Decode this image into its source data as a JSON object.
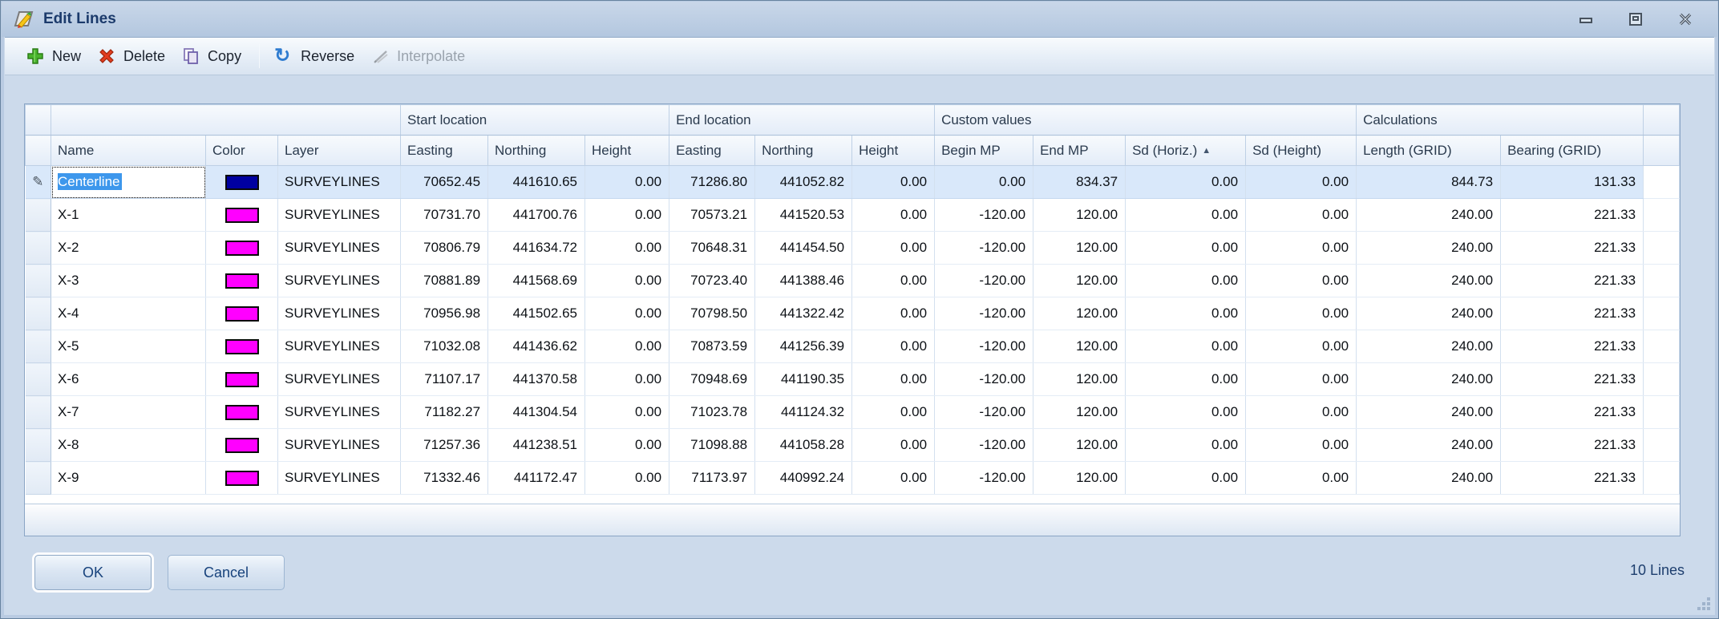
{
  "window": {
    "title": "Edit Lines"
  },
  "icons": {
    "pencil": "✎",
    "sort_asc": "▲",
    "reverse_glyph": "↻"
  },
  "colors": {
    "selection_blue": "#3d97ec",
    "navy_swatch": "#0000a0",
    "magenta_swatch": "#ff00ff",
    "titlebar_text": "#1b3a6b"
  },
  "toolbar": {
    "new_label": "New",
    "delete_label": "Delete",
    "copy_label": "Copy",
    "reverse_label": "Reverse",
    "interpolate_label": "Interpolate"
  },
  "grid": {
    "bands": {
      "start_location": "Start location",
      "end_location": "End location",
      "custom_values": "Custom values",
      "calculations": "Calculations"
    },
    "columns": [
      "Name",
      "Color",
      "Layer",
      "Easting",
      "Northing",
      "Height",
      "Easting",
      "Northing",
      "Height",
      "Begin MP",
      "End MP",
      "Sd (Horiz.)",
      "Sd (Height)",
      "Length (GRID)",
      "Bearing (GRID)"
    ],
    "sort_column": "Sd (Horiz.)",
    "sort_direction": "ascending",
    "rows": [
      {
        "name": "Centerline",
        "color": "#0000a0",
        "layer": "SURVEYLINES",
        "selected": true,
        "editing": true,
        "values": [
          "70652.45",
          "441610.65",
          "0.00",
          "71286.80",
          "441052.82",
          "0.00",
          "0.00",
          "834.37",
          "0.00",
          "0.00",
          "844.73",
          "131.33"
        ]
      },
      {
        "name": "X-1",
        "color": "#ff00ff",
        "layer": "SURVEYLINES",
        "values": [
          "70731.70",
          "441700.76",
          "0.00",
          "70573.21",
          "441520.53",
          "0.00",
          "-120.00",
          "120.00",
          "0.00",
          "0.00",
          "240.00",
          "221.33"
        ]
      },
      {
        "name": "X-2",
        "color": "#ff00ff",
        "layer": "SURVEYLINES",
        "values": [
          "70806.79",
          "441634.72",
          "0.00",
          "70648.31",
          "441454.50",
          "0.00",
          "-120.00",
          "120.00",
          "0.00",
          "0.00",
          "240.00",
          "221.33"
        ]
      },
      {
        "name": "X-3",
        "color": "#ff00ff",
        "layer": "SURVEYLINES",
        "values": [
          "70881.89",
          "441568.69",
          "0.00",
          "70723.40",
          "441388.46",
          "0.00",
          "-120.00",
          "120.00",
          "0.00",
          "0.00",
          "240.00",
          "221.33"
        ]
      },
      {
        "name": "X-4",
        "color": "#ff00ff",
        "layer": "SURVEYLINES",
        "values": [
          "70956.98",
          "441502.65",
          "0.00",
          "70798.50",
          "441322.42",
          "0.00",
          "-120.00",
          "120.00",
          "0.00",
          "0.00",
          "240.00",
          "221.33"
        ]
      },
      {
        "name": "X-5",
        "color": "#ff00ff",
        "layer": "SURVEYLINES",
        "values": [
          "71032.08",
          "441436.62",
          "0.00",
          "70873.59",
          "441256.39",
          "0.00",
          "-120.00",
          "120.00",
          "0.00",
          "0.00",
          "240.00",
          "221.33"
        ]
      },
      {
        "name": "X-6",
        "color": "#ff00ff",
        "layer": "SURVEYLINES",
        "values": [
          "71107.17",
          "441370.58",
          "0.00",
          "70948.69",
          "441190.35",
          "0.00",
          "-120.00",
          "120.00",
          "0.00",
          "0.00",
          "240.00",
          "221.33"
        ]
      },
      {
        "name": "X-7",
        "color": "#ff00ff",
        "layer": "SURVEYLINES",
        "values": [
          "71182.27",
          "441304.54",
          "0.00",
          "71023.78",
          "441124.32",
          "0.00",
          "-120.00",
          "120.00",
          "0.00",
          "0.00",
          "240.00",
          "221.33"
        ]
      },
      {
        "name": "X-8",
        "color": "#ff00ff",
        "layer": "SURVEYLINES",
        "values": [
          "71257.36",
          "441238.51",
          "0.00",
          "71098.88",
          "441058.28",
          "0.00",
          "-120.00",
          "120.00",
          "0.00",
          "0.00",
          "240.00",
          "221.33"
        ]
      },
      {
        "name": "X-9",
        "color": "#ff00ff",
        "layer": "SURVEYLINES",
        "values": [
          "71332.46",
          "441172.47",
          "0.00",
          "71173.97",
          "440992.24",
          "0.00",
          "-120.00",
          "120.00",
          "0.00",
          "0.00",
          "240.00",
          "221.33"
        ]
      }
    ]
  },
  "footer": {
    "ok_label": "OK",
    "cancel_label": "Cancel",
    "status": "10 Lines"
  }
}
